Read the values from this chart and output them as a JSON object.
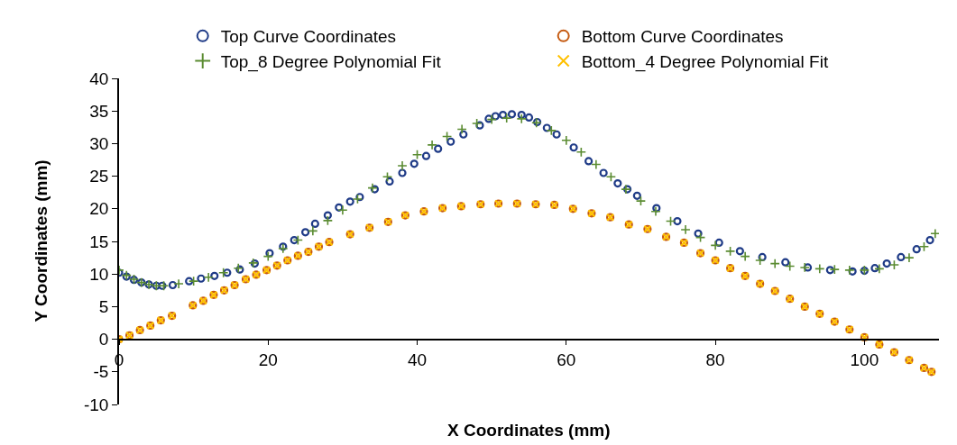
{
  "chart_data": {
    "type": "scatter",
    "xlabel": "X Coordinates (mm)",
    "ylabel": "Y Coordinates (mm)",
    "xlim": [
      0,
      110
    ],
    "xticks": [
      0,
      20,
      40,
      60,
      80,
      100
    ],
    "ylim": [
      -10,
      40
    ],
    "yticks": [
      -10,
      -5,
      0,
      5,
      10,
      15,
      20,
      25,
      30,
      35,
      40
    ],
    "grid": false,
    "legend": "top",
    "series": [
      {
        "name": "Top Curve Coordinates",
        "color": "#1f3b87",
        "marker": "circle",
        "x": [
          0,
          1,
          2,
          3,
          4,
          5,
          5.8,
          7.2,
          9.4,
          11,
          12.8,
          14.5,
          16.2,
          18.2,
          20.2,
          22,
          23.5,
          25,
          26.3,
          28,
          29.5,
          31,
          32.3,
          34.3,
          36.3,
          38,
          39.6,
          41.2,
          42.8,
          44.5,
          46.2,
          48.4,
          49.6,
          50.5,
          51.5,
          52.7,
          54,
          55,
          56.1,
          57.4,
          58.7,
          61,
          63,
          65,
          66.9,
          68.2,
          69.5,
          72.1,
          74.9,
          77.7,
          80.5,
          83.3,
          86.3,
          89.4,
          92.4,
          95.4,
          98.4,
          100,
          101.4,
          103,
          104.9,
          107,
          108.8
        ],
        "values": [
          10.2,
          9.6,
          9.1,
          8.7,
          8.4,
          8.2,
          8.2,
          8.3,
          8.9,
          9.3,
          9.7,
          10.2,
          10.7,
          11.6,
          13.2,
          14.2,
          15.2,
          16.4,
          17.7,
          19.0,
          20.2,
          21.1,
          21.8,
          23.0,
          24.2,
          25.5,
          26.9,
          28.1,
          29.2,
          30.3,
          31.4,
          32.8,
          33.8,
          34.2,
          34.4,
          34.5,
          34.4,
          34.0,
          33.3,
          32.4,
          31.4,
          29.4,
          27.3,
          25.5,
          23.9,
          23.0,
          22.0,
          20.1,
          18.1,
          16.2,
          14.8,
          13.5,
          12.6,
          11.8,
          11.0,
          10.6,
          10.4,
          10.5,
          10.9,
          11.6,
          12.6,
          13.8,
          15.2
        ]
      },
      {
        "name": "Bottom Curve Coordinates",
        "color": "#c55a11",
        "marker": "circle",
        "x": [
          0,
          1.4,
          2.8,
          4.2,
          5.6,
          7.1,
          9.9,
          11.3,
          12.7,
          14.1,
          15.5,
          17,
          18.4,
          19.8,
          21.2,
          22.6,
          24,
          25.4,
          26.8,
          28.2,
          31,
          33.6,
          36.1,
          38.4,
          40.9,
          43.4,
          45.9,
          48.5,
          50.9,
          53.4,
          55.9,
          58.4,
          60.9,
          63.4,
          65.9,
          68.4,
          70.9,
          73.4,
          75.8,
          78,
          80,
          82,
          84,
          86,
          88,
          90,
          92,
          94,
          96,
          98,
          100,
          102,
          104,
          106,
          108,
          109
        ],
        "values": [
          0,
          0.6,
          1.4,
          2.1,
          2.9,
          3.6,
          5.2,
          5.9,
          6.8,
          7.5,
          8.3,
          9.2,
          9.9,
          10.6,
          11.3,
          12.1,
          12.8,
          13.4,
          14.2,
          14.9,
          16.1,
          17.1,
          18.0,
          19.0,
          19.6,
          20.1,
          20.4,
          20.7,
          20.8,
          20.8,
          20.7,
          20.6,
          20.0,
          19.3,
          18.7,
          17.6,
          16.9,
          15.7,
          14.8,
          13.2,
          12.1,
          10.9,
          9.7,
          8.5,
          7.4,
          6.2,
          5.0,
          3.9,
          2.7,
          1.5,
          0.3,
          -0.8,
          -2.0,
          -3.2,
          -4.4,
          -5.0
        ]
      },
      {
        "name": "Top_8 Degree Polynomial Fit",
        "color": "#5b8c32",
        "marker": "cross",
        "x": [
          0,
          1,
          2,
          3,
          4,
          5,
          6,
          8,
          10,
          12,
          14,
          16,
          18,
          20,
          22,
          24,
          26,
          28,
          30,
          32,
          34,
          36,
          38,
          40,
          42,
          44,
          46,
          48,
          50,
          52,
          54,
          56,
          58,
          60,
          62,
          64,
          66,
          68,
          70,
          72,
          74,
          76,
          78,
          80,
          82,
          84,
          86,
          88,
          90,
          92,
          94,
          96,
          98,
          100,
          102,
          104,
          106,
          108,
          109.5
        ],
        "values": [
          10.6,
          9.8,
          9.2,
          8.7,
          8.4,
          8.2,
          8.2,
          8.5,
          8.9,
          9.5,
          10.2,
          10.9,
          11.7,
          12.7,
          13.9,
          15.2,
          16.6,
          18.2,
          19.8,
          21.5,
          23.2,
          24.9,
          26.6,
          28.3,
          29.8,
          31.1,
          32.2,
          33.1,
          33.7,
          33.9,
          33.8,
          33.2,
          32.0,
          30.5,
          28.7,
          26.8,
          24.9,
          23.0,
          21.2,
          19.6,
          18.1,
          16.8,
          15.6,
          14.4,
          13.5,
          12.7,
          12.1,
          11.6,
          11.2,
          11.0,
          10.8,
          10.7,
          10.6,
          10.6,
          10.8,
          11.4,
          12.5,
          14.2,
          16.2
        ]
      },
      {
        "name": "Bottom_4 Degree Polynomial Fit",
        "color": "#ffc000",
        "marker": "x",
        "x": [
          0,
          1.4,
          2.8,
          4.2,
          5.6,
          7.1,
          9.9,
          11.3,
          12.7,
          14.1,
          15.5,
          17,
          18.4,
          19.8,
          21.2,
          22.6,
          24,
          25.4,
          26.8,
          28.2,
          31,
          33.6,
          36.1,
          38.4,
          40.9,
          43.4,
          45.9,
          48.5,
          50.9,
          53.4,
          55.9,
          58.4,
          60.9,
          63.4,
          65.9,
          68.4,
          70.9,
          73.4,
          75.8,
          78,
          80,
          82,
          84,
          86,
          88,
          90,
          92,
          94,
          96,
          98,
          100,
          102,
          104,
          106,
          108,
          109
        ],
        "values": [
          0,
          0.6,
          1.4,
          2.1,
          2.9,
          3.6,
          5.2,
          5.9,
          6.8,
          7.5,
          8.3,
          9.2,
          9.9,
          10.6,
          11.3,
          12.1,
          12.8,
          13.4,
          14.2,
          14.9,
          16.1,
          17.1,
          18.0,
          19.0,
          19.6,
          20.1,
          20.4,
          20.7,
          20.8,
          20.8,
          20.7,
          20.6,
          20.0,
          19.3,
          18.7,
          17.6,
          16.9,
          15.7,
          14.8,
          13.2,
          12.1,
          10.9,
          9.7,
          8.5,
          7.4,
          6.2,
          5.0,
          3.9,
          2.7,
          1.5,
          0.3,
          -0.8,
          -2.0,
          -3.2,
          -4.4,
          -5.0
        ]
      }
    ]
  }
}
